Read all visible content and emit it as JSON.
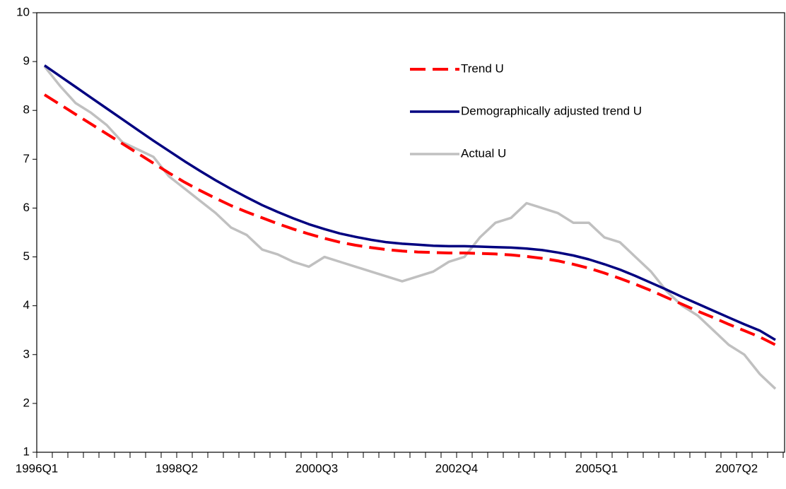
{
  "chart_data": {
    "type": "line",
    "categories": [
      "1996Q1",
      null,
      null,
      null,
      null,
      null,
      null,
      null,
      null,
      "1998Q2",
      null,
      null,
      null,
      null,
      null,
      null,
      null,
      null,
      "2000Q3",
      null,
      null,
      null,
      null,
      null,
      null,
      null,
      null,
      "2002Q4",
      null,
      null,
      null,
      null,
      null,
      null,
      null,
      null,
      "2005Q1",
      null,
      null,
      null,
      null,
      null,
      null,
      null,
      null,
      "2007Q2",
      null,
      null
    ],
    "series": [
      {
        "name": "Trend U",
        "color": "#ff0000",
        "dashed": true,
        "values": [
          8.32,
          8.12,
          7.92,
          7.72,
          7.52,
          7.32,
          7.12,
          6.92,
          6.72,
          6.53,
          6.36,
          6.2,
          6.05,
          5.92,
          5.8,
          5.68,
          5.57,
          5.47,
          5.38,
          5.3,
          5.24,
          5.19,
          5.15,
          5.12,
          5.1,
          5.09,
          5.08,
          5.08,
          5.07,
          5.06,
          5.04,
          5.01,
          4.97,
          4.92,
          4.85,
          4.77,
          4.67,
          4.56,
          4.44,
          4.31,
          4.17,
          4.03,
          3.89,
          3.76,
          3.62,
          3.49,
          3.36,
          3.2
        ]
      },
      {
        "name": "Demographically adjusted trend U",
        "color": "#000080",
        "dashed": false,
        "values": [
          8.92,
          8.7,
          8.48,
          8.26,
          8.04,
          7.82,
          7.6,
          7.38,
          7.17,
          6.96,
          6.76,
          6.57,
          6.39,
          6.22,
          6.06,
          5.92,
          5.79,
          5.67,
          5.57,
          5.48,
          5.41,
          5.35,
          5.3,
          5.27,
          5.25,
          5.23,
          5.22,
          5.22,
          5.21,
          5.2,
          5.19,
          5.17,
          5.14,
          5.09,
          5.03,
          4.95,
          4.85,
          4.74,
          4.61,
          4.47,
          4.33,
          4.18,
          4.04,
          3.9,
          3.76,
          3.62,
          3.49,
          3.3
        ]
      },
      {
        "name": "Actual U",
        "color": "#c0c0c0",
        "dashed": false,
        "values": [
          8.9,
          8.5,
          8.15,
          7.95,
          7.7,
          7.35,
          7.2,
          7.05,
          6.65,
          6.4,
          6.15,
          5.9,
          5.6,
          5.45,
          5.15,
          5.05,
          4.9,
          4.8,
          5.0,
          4.9,
          4.8,
          4.7,
          4.6,
          4.5,
          4.6,
          4.7,
          4.9,
          5.0,
          5.4,
          5.7,
          5.8,
          6.1,
          6.0,
          5.9,
          5.7,
          5.7,
          5.4,
          5.3,
          5.0,
          4.7,
          4.3,
          4.0,
          3.8,
          3.5,
          3.2,
          3.0,
          2.6,
          2.3
        ]
      }
    ],
    "ylim": [
      1,
      10
    ],
    "yticks": [
      1,
      2,
      3,
      4,
      5,
      6,
      7,
      8,
      9,
      10
    ],
    "grid": false,
    "legend": "upper right"
  }
}
